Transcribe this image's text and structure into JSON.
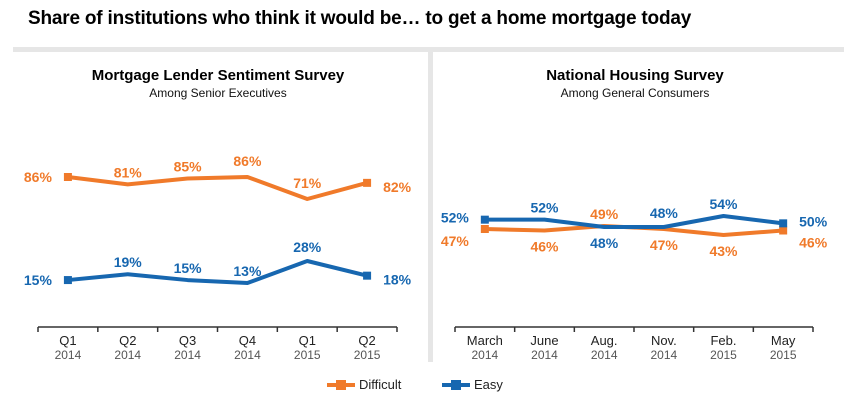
{
  "title": "Share of institutions who think it would be… to get a home mortgage today",
  "colors": {
    "difficult": "#f07a2a",
    "easy": "#1767b0"
  },
  "legend": [
    {
      "name": "Difficult",
      "color": "#f07a2a"
    },
    {
      "name": "Easy",
      "color": "#1767b0"
    }
  ],
  "chart_data": [
    {
      "type": "line",
      "title": "Mortgage Lender Sentiment Survey",
      "subtitle": "Among Senior Executives",
      "categories": [
        "Q1 2014",
        "Q2 2014",
        "Q3 2014",
        "Q4 2014",
        "Q1 2015",
        "Q2 2015"
      ],
      "tick_labels": [
        [
          "Q1",
          "2014"
        ],
        [
          "Q2",
          "2014"
        ],
        [
          "Q3",
          "2014"
        ],
        [
          "Q4",
          "2014"
        ],
        [
          "Q1",
          "2015"
        ],
        [
          "Q2",
          "2015"
        ]
      ],
      "series": [
        {
          "name": "Difficult",
          "values": [
            86,
            81,
            85,
            86,
            71,
            82
          ],
          "labels": [
            "86%",
            "81%",
            "85%",
            "86%",
            "71%",
            "82%"
          ]
        },
        {
          "name": "Easy",
          "values": [
            15,
            19,
            15,
            13,
            28,
            18
          ],
          "labels": [
            "15%",
            "19%",
            "15%",
            "13%",
            "28%",
            "18%"
          ]
        }
      ],
      "xlabel": "",
      "ylabel": "",
      "grid": false,
      "legend": "bottom"
    },
    {
      "type": "line",
      "title": "National Housing Survey",
      "subtitle": "Among General Consumers",
      "categories": [
        "March 2014",
        "June 2014",
        "Aug. 2014",
        "Nov. 2014",
        "Feb. 2015",
        "May 2015"
      ],
      "tick_labels": [
        [
          "March",
          "2014"
        ],
        [
          "June",
          "2014"
        ],
        [
          "Aug.",
          "2014"
        ],
        [
          "Nov.",
          "2014"
        ],
        [
          "Feb.",
          "2015"
        ],
        [
          "May",
          "2015"
        ]
      ],
      "series": [
        {
          "name": "Difficult",
          "values": [
            47,
            46,
            49,
            47,
            43,
            46
          ],
          "labels": [
            "47%",
            "46%",
            "49%",
            "47%",
            "43%",
            "46%"
          ]
        },
        {
          "name": "Easy",
          "values": [
            52,
            52,
            48,
            48,
            54,
            50
          ],
          "labels": [
            "52%",
            "52%",
            "48%",
            "48%",
            "54%",
            "50%"
          ]
        }
      ],
      "xlabel": "",
      "ylabel": "",
      "grid": false,
      "legend": "bottom"
    }
  ]
}
